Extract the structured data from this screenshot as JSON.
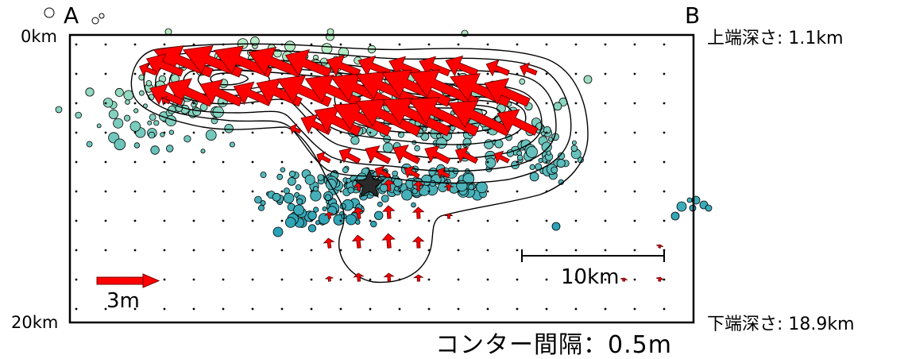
{
  "section": {
    "left_end": "A",
    "right_end": "B",
    "top_depth_axis": "0km",
    "bottom_depth_axis": "20km",
    "upper_edge_depth": "上端深さ: 1.1km",
    "lower_edge_depth": "下端深さ: 18.9km"
  },
  "legend": {
    "slip_scale_label": "3m",
    "distance_scale_label": "10km",
    "contour_interval": "コンター間隔：0.5m"
  },
  "colors": {
    "slip_vector": "#ff0000",
    "contour": "#000000",
    "shallow_quake": "#b6ecc4",
    "deep_quake": "#1e9bb5",
    "epicenter_star": "#2a2a2a"
  },
  "icons": {
    "hypocenter": "star-icon",
    "aftershock": "circle-icon",
    "slip_vector": "arrow-icon"
  }
}
